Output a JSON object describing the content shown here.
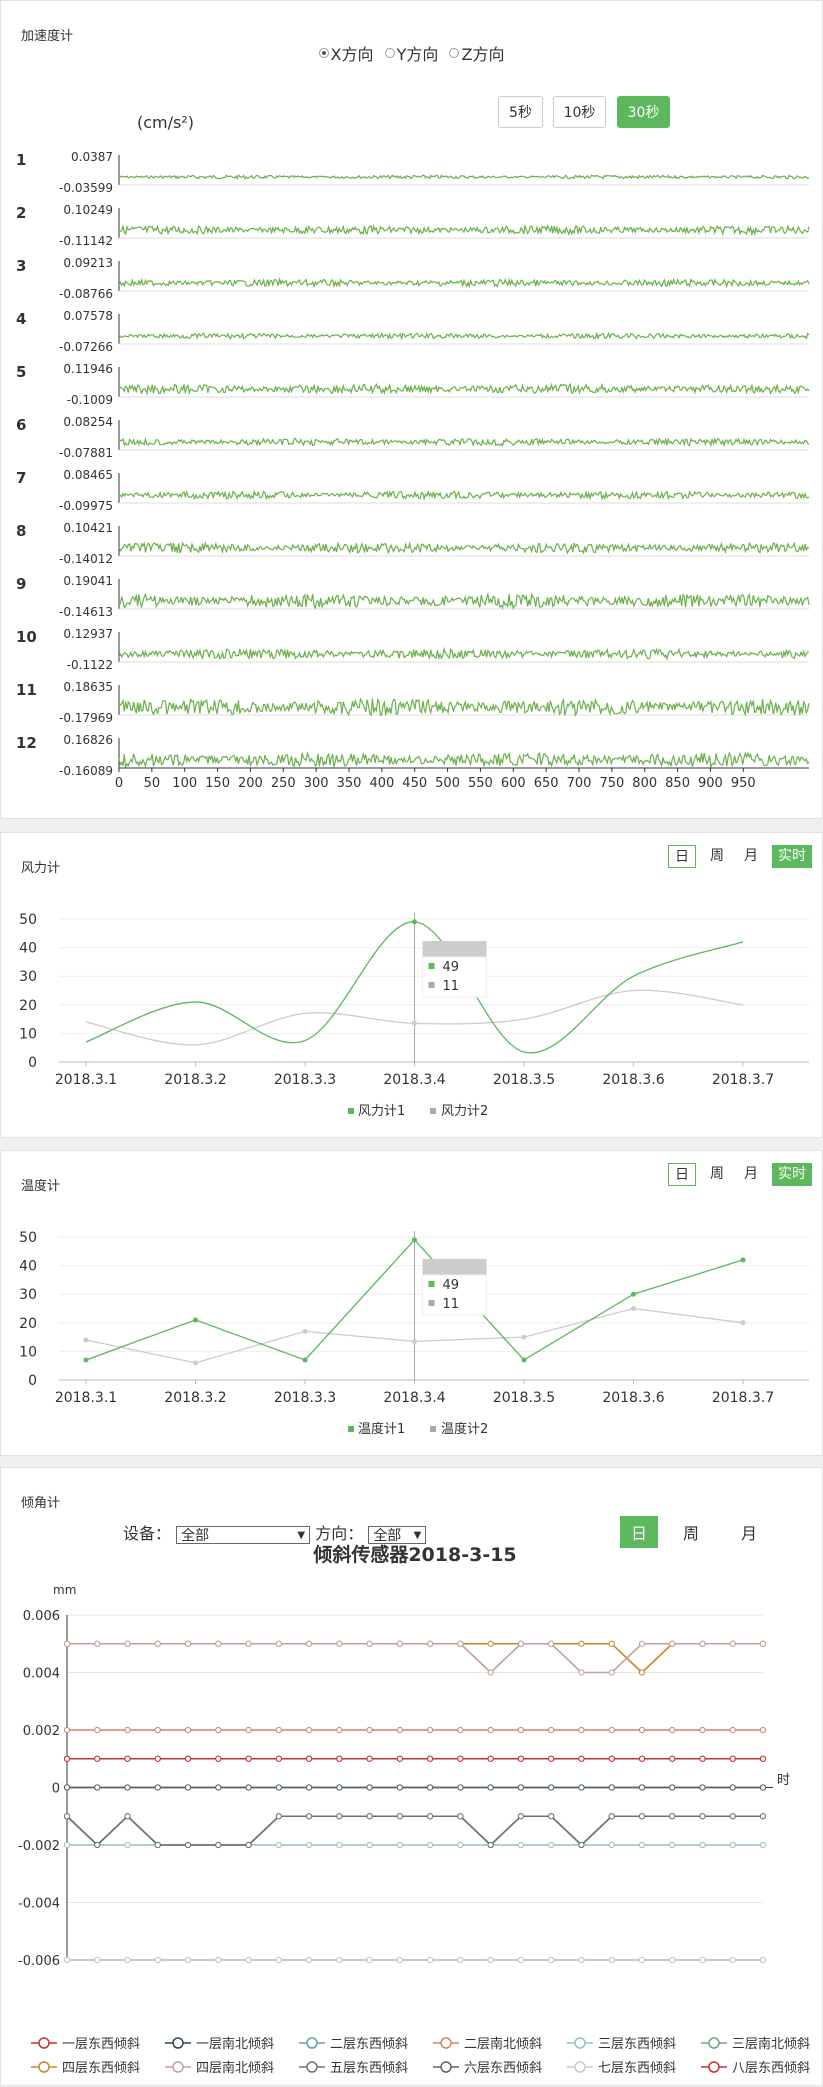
{
  "accelerometer": {
    "title": "加速度计",
    "directions": [
      "X方向",
      "Y方向",
      "Z方向"
    ],
    "selected_direction": 0,
    "unit": "(cm/s²)",
    "time_buttons": [
      "5秒",
      "10秒",
      "30秒"
    ],
    "selected_time": 2,
    "x_ticks": [
      "0",
      "50",
      "100",
      "150",
      "200",
      "250",
      "300",
      "350",
      "400",
      "450",
      "500",
      "550",
      "600",
      "650",
      "700",
      "750",
      "800",
      "850",
      "900",
      "950"
    ]
  },
  "wind": {
    "title": "风力计",
    "toggles": [
      "日",
      "周",
      "月",
      "实时"
    ],
    "tooltip": {
      "v1": "49",
      "v2": "11"
    }
  },
  "temperature": {
    "title": "温度计",
    "toggles": [
      "日",
      "周",
      "月",
      "实时"
    ],
    "tooltip": {
      "v1": "49",
      "v2": "11"
    }
  },
  "tilt": {
    "title": "倾角计",
    "device_label": "设备：",
    "device_value": "全部",
    "direction_label": "方向：",
    "direction_value": "全部",
    "toggles": [
      "日",
      "周",
      "月"
    ]
  },
  "chart_data": [
    {
      "type": "line",
      "title": "加速度计",
      "ylabel": "(cm/s²)",
      "xlim": [
        0,
        1050
      ],
      "channels": [
        {
          "name": "1",
          "max": "0.0387",
          "min": "-0.03599",
          "amp": 0.15
        },
        {
          "name": "2",
          "max": "0.10249",
          "min": "-0.11142",
          "amp": 0.35
        },
        {
          "name": "3",
          "max": "0.09213",
          "min": "-0.08766",
          "amp": 0.3
        },
        {
          "name": "4",
          "max": "0.07578",
          "min": "-0.07266",
          "amp": 0.22
        },
        {
          "name": "5",
          "max": "0.11946",
          "min": "-0.1009",
          "amp": 0.4
        },
        {
          "name": "6",
          "max": "0.08254",
          "min": "-0.07881",
          "amp": 0.3
        },
        {
          "name": "7",
          "max": "0.08465",
          "min": "-0.09975",
          "amp": 0.32
        },
        {
          "name": "8",
          "max": "0.10421",
          "min": "-0.14012",
          "amp": 0.42
        },
        {
          "name": "9",
          "max": "0.19041",
          "min": "-0.14613",
          "amp": 0.6
        },
        {
          "name": "10",
          "max": "0.12937",
          "min": "-0.1122",
          "amp": 0.42
        },
        {
          "name": "11",
          "max": "0.18635",
          "min": "-0.17969",
          "amp": 0.7
        },
        {
          "name": "12",
          "max": "0.16826",
          "min": "-0.16089",
          "amp": 0.6
        }
      ]
    },
    {
      "type": "line",
      "title": "风力计",
      "categories": [
        "2018.3.1",
        "2018.3.2",
        "2018.3.3",
        "2018.3.4",
        "2018.3.5",
        "2018.3.6",
        "2018.3.7"
      ],
      "ylim": [
        0,
        50
      ],
      "yticks": [
        0,
        10,
        20,
        30,
        40,
        50
      ],
      "series": [
        {
          "name": "风力计1",
          "values": [
            7,
            21,
            7.5,
            49,
            3.5,
            30,
            42
          ],
          "color": "#5cb85c"
        },
        {
          "name": "风力计2",
          "values": [
            14,
            6,
            17,
            13.5,
            15,
            25,
            20
          ],
          "color": "#cccccc"
        }
      ],
      "smooth": true
    },
    {
      "type": "line",
      "title": "温度计",
      "categories": [
        "2018.3.1",
        "2018.3.2",
        "2018.3.3",
        "2018.3.4",
        "2018.3.5",
        "2018.3.6",
        "2018.3.7"
      ],
      "ylim": [
        0,
        50
      ],
      "yticks": [
        0,
        10,
        20,
        30,
        40,
        50
      ],
      "series": [
        {
          "name": "温度计1",
          "values": [
            7,
            21,
            7,
            49,
            7,
            30,
            42
          ],
          "color": "#5cb85c"
        },
        {
          "name": "温度计2",
          "values": [
            14,
            6,
            17,
            13.5,
            15,
            25,
            20
          ],
          "color": "#cccccc"
        }
      ],
      "smooth": false
    },
    {
      "type": "line",
      "title": "倾斜传感器2018-3-15",
      "ylabel": "mm",
      "xlabel": "时",
      "ylim": [
        -0.006,
        0.006
      ],
      "yticks": [
        "0.006",
        "0.004",
        "0.002",
        "0",
        "-0.002",
        "-0.004",
        "-0.006"
      ],
      "points": 24,
      "series": [
        {
          "name": "一层东西倾斜",
          "color": "#c23531",
          "values": [
            0.001,
            0.001,
            0.001,
            0.001,
            0.001,
            0.001,
            0.001,
            0.001,
            0.001,
            0.001,
            0.001,
            0.001,
            0.001,
            0.001,
            0.001,
            0.001,
            0.001,
            0.001,
            0.001,
            0.001,
            0.001,
            0.001,
            0.001,
            0.001
          ]
        },
        {
          "name": "一层南北倾斜",
          "color": "#2f4554",
          "values": [
            0,
            0,
            0,
            0,
            0,
            0,
            0,
            0,
            0,
            0,
            0,
            0,
            0,
            0,
            0,
            0,
            0,
            0,
            0,
            0,
            0,
            0,
            0,
            0
          ]
        },
        {
          "name": "二层东西倾斜",
          "color": "#61a0a8",
          "values": [
            -0.006,
            -0.006,
            -0.006,
            -0.006,
            -0.006,
            -0.006,
            -0.006,
            -0.006,
            -0.006,
            -0.006,
            -0.006,
            -0.006,
            -0.006,
            -0.006,
            -0.006,
            -0.006,
            -0.006,
            -0.006,
            -0.006,
            -0.006,
            -0.006,
            -0.006,
            -0.006,
            -0.006
          ]
        },
        {
          "name": "二层南北倾斜",
          "color": "#d48265",
          "values": [
            0.002,
            0.002,
            0.002,
            0.002,
            0.002,
            0.002,
            0.002,
            0.002,
            0.002,
            0.002,
            0.002,
            0.002,
            0.002,
            0.002,
            0.002,
            0.002,
            0.002,
            0.002,
            0.002,
            0.002,
            0.002,
            0.002,
            0.002,
            0.002
          ]
        },
        {
          "name": "三层东西倾斜",
          "color": "#91c7ae",
          "values": [
            -0.002,
            -0.002,
            -0.002,
            -0.002,
            -0.002,
            -0.002,
            -0.002,
            -0.002,
            -0.002,
            -0.002,
            -0.002,
            -0.002,
            -0.002,
            -0.002,
            -0.002,
            -0.002,
            -0.002,
            -0.002,
            -0.002,
            -0.002,
            -0.002,
            -0.002,
            -0.002,
            -0.002
          ]
        },
        {
          "name": "三层南北倾斜",
          "color": "#749f83",
          "values": [
            -0.001,
            -0.002,
            -0.001,
            -0.002,
            -0.002,
            -0.002,
            -0.002,
            -0.001,
            -0.001,
            -0.001,
            -0.001,
            -0.001,
            -0.001,
            -0.001,
            -0.002,
            -0.001,
            -0.001,
            -0.002,
            -0.001,
            -0.001,
            -0.001,
            -0.001,
            -0.001,
            -0.001
          ]
        },
        {
          "name": "四层东西倾斜",
          "color": "#ca8622",
          "values": [
            0.005,
            0.005,
            0.005,
            0.005,
            0.005,
            0.005,
            0.005,
            0.005,
            0.005,
            0.005,
            0.005,
            0.005,
            0.005,
            0.005,
            0.005,
            0.005,
            0.005,
            0.005,
            0.005,
            0.004,
            0.005,
            0.005,
            0.005,
            0.005
          ]
        },
        {
          "name": "四层南北倾斜",
          "color": "#bda29a",
          "values": [
            0.005,
            0.005,
            0.005,
            0.005,
            0.005,
            0.005,
            0.005,
            0.005,
            0.005,
            0.005,
            0.005,
            0.005,
            0.005,
            0.005,
            0.004,
            0.005,
            0.005,
            0.004,
            0.004,
            0.005,
            0.005,
            0.005,
            0.005,
            0.005
          ]
        },
        {
          "name": "五层东西倾斜",
          "color": "#6e7074",
          "values": [
            -0.001,
            -0.002,
            -0.001,
            -0.002,
            -0.002,
            -0.002,
            -0.002,
            -0.001,
            -0.001,
            -0.001,
            -0.001,
            -0.001,
            -0.001,
            -0.001,
            -0.002,
            -0.001,
            -0.001,
            -0.002,
            -0.001,
            -0.001,
            -0.001,
            -0.001,
            -0.001,
            -0.001
          ]
        },
        {
          "name": "六层东西倾斜",
          "color": "#546570",
          "values": [
            0,
            0,
            0,
            0,
            0,
            0,
            0,
            0,
            0,
            0,
            0,
            0,
            0,
            0,
            0,
            0,
            0,
            0,
            0,
            0,
            0,
            0,
            0,
            0
          ]
        },
        {
          "name": "七层东西倾斜",
          "color": "#c4ccd3",
          "values": [
            -0.006,
            -0.006,
            -0.006,
            -0.006,
            -0.006,
            -0.006,
            -0.006,
            -0.006,
            -0.006,
            -0.006,
            -0.006,
            -0.006,
            -0.006,
            -0.006,
            -0.006,
            -0.006,
            -0.006,
            -0.006,
            -0.006,
            -0.006,
            -0.006,
            -0.006,
            -0.006,
            -0.006
          ]
        },
        {
          "name": "八层东西倾斜",
          "color": "#c23531",
          "values": [
            0.001,
            0.001,
            0.001,
            0.001,
            0.001,
            0.001,
            0.001,
            0.001,
            0.001,
            0.001,
            0.001,
            0.001,
            0.001,
            0.001,
            0.001,
            0.001,
            0.001,
            0.001,
            0.001,
            0.001,
            0.001,
            0.001,
            0.001,
            0.001
          ]
        }
      ]
    }
  ]
}
